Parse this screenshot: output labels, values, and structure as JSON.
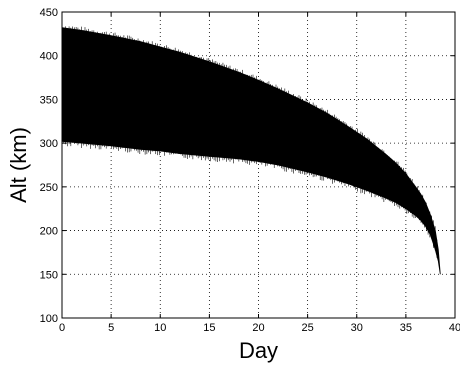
{
  "chart_data": {
    "type": "area",
    "title": "",
    "xlabel": "Day",
    "ylabel": "Alt (km)",
    "xlim": [
      0,
      40
    ],
    "ylim": [
      100,
      450
    ],
    "xticks": [
      0,
      5,
      10,
      15,
      20,
      25,
      30,
      35,
      40
    ],
    "yticks": [
      100,
      150,
      200,
      250,
      300,
      350,
      400,
      450
    ],
    "grid": true,
    "grid_style": "dotted",
    "band_color": "#000000",
    "series": [
      {
        "x": [
          0,
          2,
          5,
          8,
          10,
          12,
          15,
          18,
          20,
          22,
          25,
          27,
          29,
          31,
          33,
          34,
          35,
          36,
          36.5,
          37,
          37.5,
          38,
          38.3,
          38.5
        ],
        "upper": [
          432,
          429,
          423,
          416,
          410,
          404,
          393,
          381,
          372,
          362,
          346,
          334,
          320,
          305,
          287,
          277,
          265,
          250,
          242,
          232,
          218,
          200,
          178,
          150
        ],
        "lower": [
          302,
          300,
          297,
          293,
          291,
          288,
          285,
          282,
          279,
          275,
          267,
          261,
          254,
          246,
          237,
          232,
          225,
          217,
          212,
          205,
          195,
          178,
          165,
          150
        ]
      }
    ]
  }
}
